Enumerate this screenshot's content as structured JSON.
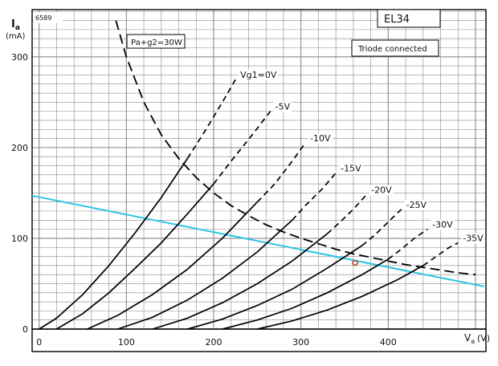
{
  "chart_data": {
    "type": "line",
    "title": "EL34",
    "subtitle": "Triode connected",
    "figure_number": "6589",
    "ylabel": {
      "symbol": "I",
      "subscript": "a",
      "unit": "(mA)"
    },
    "xlabel": {
      "symbol": "V",
      "subscript": "a",
      "unit": "(V)"
    },
    "xlim": [
      -8,
      512
    ],
    "ylim": [
      0,
      352
    ],
    "x_ticks": [
      0,
      100,
      200,
      300,
      400
    ],
    "x_tick_labels": [
      "0",
      "100",
      "200",
      "300",
      "400"
    ],
    "y_ticks": [
      0,
      100,
      200,
      300
    ],
    "y_tick_labels": [
      "0",
      "100",
      "200",
      "300"
    ],
    "grid": true,
    "dissipation_label": "Pa+g2=30W",
    "dissipation_curve": {
      "name": "Pa+g2=30W",
      "style": "dashed",
      "points": [
        [
          88,
          340
        ],
        [
          100,
          300
        ],
        [
          120,
          250
        ],
        [
          140,
          214
        ],
        [
          160,
          188
        ],
        [
          180,
          167
        ],
        [
          200,
          150
        ],
        [
          220,
          136
        ],
        [
          240,
          125
        ],
        [
          260,
          115
        ],
        [
          280,
          107
        ],
        [
          300,
          100
        ],
        [
          320,
          94
        ],
        [
          340,
          88
        ],
        [
          360,
          83
        ],
        [
          380,
          79
        ],
        [
          400,
          75
        ],
        [
          420,
          71
        ],
        [
          440,
          68
        ],
        [
          460,
          65
        ],
        [
          480,
          62
        ],
        [
          500,
          60
        ]
      ]
    },
    "series": [
      {
        "name": "Vg1=0V",
        "label": "Vg1=0V",
        "solid": [
          [
            0,
            0
          ],
          [
            20,
            12
          ],
          [
            50,
            38
          ],
          [
            80,
            70
          ],
          [
            110,
            106
          ],
          [
            140,
            145
          ],
          [
            170,
            188
          ]
        ],
        "dashed": [
          [
            170,
            188
          ],
          [
            190,
            218
          ],
          [
            210,
            250
          ],
          [
            225,
            275
          ]
        ]
      },
      {
        "name": "-5V",
        "label": "-5V",
        "solid": [
          [
            20,
            0
          ],
          [
            50,
            17
          ],
          [
            80,
            40
          ],
          [
            110,
            67
          ],
          [
            140,
            95
          ],
          [
            170,
            127
          ],
          [
            200,
            160
          ]
        ],
        "dashed": [
          [
            200,
            160
          ],
          [
            220,
            185
          ],
          [
            245,
            215
          ],
          [
            265,
            240
          ]
        ]
      },
      {
        "name": "-10V",
        "label": "-10V",
        "solid": [
          [
            55,
            0
          ],
          [
            90,
            15
          ],
          [
            130,
            38
          ],
          [
            170,
            66
          ],
          [
            210,
            100
          ],
          [
            250,
            140
          ]
        ],
        "dashed": [
          [
            250,
            140
          ],
          [
            270,
            160
          ],
          [
            290,
            185
          ],
          [
            305,
            205
          ]
        ]
      },
      {
        "name": "-15V",
        "label": "-15V",
        "solid": [
          [
            90,
            0
          ],
          [
            130,
            13
          ],
          [
            170,
            32
          ],
          [
            210,
            56
          ],
          [
            250,
            85
          ],
          [
            290,
            120
          ]
        ],
        "dashed": [
          [
            290,
            120
          ],
          [
            305,
            136
          ],
          [
            325,
            155
          ],
          [
            340,
            172
          ]
        ]
      },
      {
        "name": "-20V",
        "label": "-20V",
        "solid": [
          [
            130,
            0
          ],
          [
            170,
            12
          ],
          [
            210,
            29
          ],
          [
            250,
            50
          ],
          [
            290,
            75
          ],
          [
            330,
            105
          ]
        ],
        "dashed": [
          [
            330,
            105
          ],
          [
            345,
            118
          ],
          [
            360,
            132
          ],
          [
            375,
            148
          ]
        ]
      },
      {
        "name": "-25V",
        "label": "-25V",
        "solid": [
          [
            170,
            0
          ],
          [
            210,
            11
          ],
          [
            250,
            26
          ],
          [
            290,
            44
          ],
          [
            330,
            67
          ],
          [
            370,
            92
          ]
        ],
        "dashed": [
          [
            370,
            92
          ],
          [
            385,
            104
          ],
          [
            400,
            118
          ],
          [
            415,
            132
          ]
        ]
      },
      {
        "name": "-30V",
        "label": "-30V",
        "solid": [
          [
            210,
            0
          ],
          [
            250,
            10
          ],
          [
            290,
            23
          ],
          [
            330,
            40
          ],
          [
            370,
            60
          ],
          [
            400,
            77
          ]
        ],
        "dashed": [
          [
            400,
            77
          ],
          [
            415,
            88
          ],
          [
            430,
            100
          ],
          [
            445,
            110
          ]
        ]
      },
      {
        "name": "-35V",
        "label": "-35V",
        "solid": [
          [
            250,
            0
          ],
          [
            290,
            9
          ],
          [
            330,
            21
          ],
          [
            370,
            36
          ],
          [
            410,
            54
          ],
          [
            440,
            70
          ]
        ],
        "dashed": [
          [
            440,
            70
          ],
          [
            455,
            80
          ],
          [
            470,
            90
          ],
          [
            480,
            95
          ]
        ]
      }
    ],
    "load_line": {
      "color": "#2ec4e6",
      "points": [
        [
          -8,
          147
        ],
        [
          510,
          47
        ]
      ]
    },
    "marker": {
      "x": 362,
      "y": 73,
      "color": "#c0392b"
    }
  }
}
